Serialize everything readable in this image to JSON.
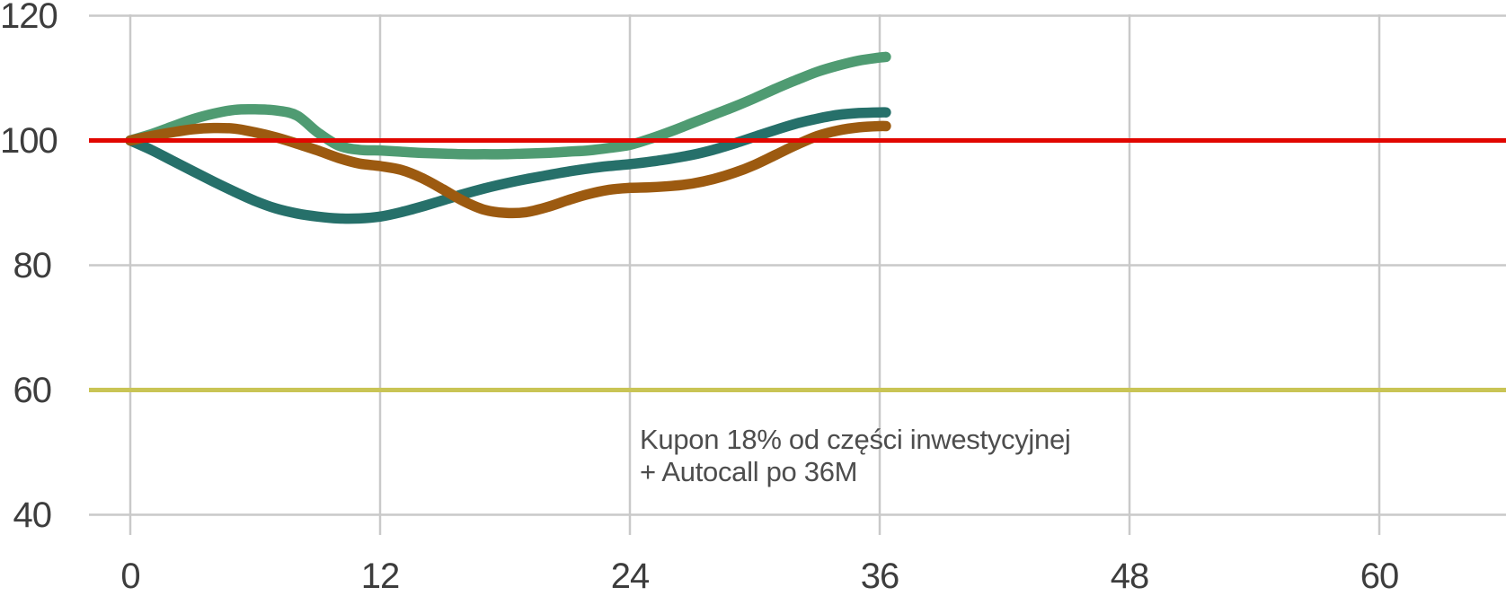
{
  "chart_data": {
    "type": "line",
    "title": "",
    "xlabel": "",
    "ylabel": "",
    "xlim": [
      0,
      66
    ],
    "ylim": [
      40,
      120
    ],
    "grid": true,
    "legend": "none",
    "x_tick_labels": [
      "0",
      "12",
      "24",
      "36",
      "48",
      "60"
    ],
    "x_tick_values": [
      0,
      12,
      24,
      36,
      48,
      60
    ],
    "y_tick_labels": [
      "120",
      "100",
      "80",
      "60",
      "40"
    ],
    "y_tick_values": [
      120,
      100,
      80,
      60,
      40
    ],
    "x": [
      0,
      1,
      2,
      3,
      4,
      5,
      6,
      7,
      8,
      9,
      10,
      11,
      12,
      13,
      14,
      15,
      16,
      17,
      18,
      19,
      20,
      21,
      22,
      23,
      24,
      25,
      26,
      27,
      28,
      29,
      30,
      31,
      32,
      33,
      34,
      35,
      36,
      36.3
    ],
    "series": [
      {
        "name": "green-line",
        "color": "#4f9b72",
        "values": [
          100,
          101.0,
          102.2,
          103.4,
          104.3,
          104.9,
          105.0,
          104.8,
          104.0,
          101.3,
          99.2,
          98.5,
          98.4,
          98.2,
          98.0,
          97.9,
          97.8,
          97.8,
          97.8,
          97.9,
          98.0,
          98.2,
          98.4,
          98.8,
          99.3,
          100.3,
          101.5,
          102.8,
          104.1,
          105.4,
          106.8,
          108.3,
          109.7,
          111.0,
          112.0,
          112.8,
          113.3,
          113.4
        ]
      },
      {
        "name": "teal-line",
        "color": "#26706a",
        "values": [
          100,
          98.5,
          96.8,
          95.1,
          93.4,
          91.8,
          90.3,
          89.1,
          88.3,
          87.8,
          87.5,
          87.5,
          87.8,
          88.5,
          89.4,
          90.4,
          91.4,
          92.3,
          93.1,
          93.8,
          94.4,
          95.0,
          95.5,
          95.9,
          96.2,
          96.6,
          97.1,
          97.7,
          98.5,
          99.5,
          100.6,
          101.7,
          102.7,
          103.5,
          104.1,
          104.4,
          104.5,
          104.5
        ]
      },
      {
        "name": "brown-line",
        "color": "#9c5a10",
        "values": [
          100,
          100.7,
          101.3,
          101.8,
          102.0,
          101.9,
          101.3,
          100.5,
          99.5,
          98.4,
          97.2,
          96.3,
          95.9,
          95.3,
          94.0,
          92.2,
          90.3,
          88.9,
          88.4,
          88.5,
          89.3,
          90.4,
          91.4,
          92.1,
          92.4,
          92.5,
          92.7,
          93.1,
          93.8,
          94.8,
          96.1,
          97.7,
          99.3,
          100.7,
          101.6,
          102.1,
          102.3,
          102.3
        ]
      }
    ],
    "reference_lines": [
      {
        "name": "level-100",
        "value": 100,
        "color": "#e10600",
        "layer": "above"
      },
      {
        "name": "level-60",
        "value": 60,
        "color": "#c9c455",
        "layer": "below"
      }
    ],
    "grid_color": "#c9c9c9",
    "axis_text_color": "#3d3d3d",
    "annotation": {
      "line1": "Kupon 18% od części inwestycyjnej",
      "line2": "+ Autocall po 36M",
      "color": "#4d4d4d"
    }
  }
}
